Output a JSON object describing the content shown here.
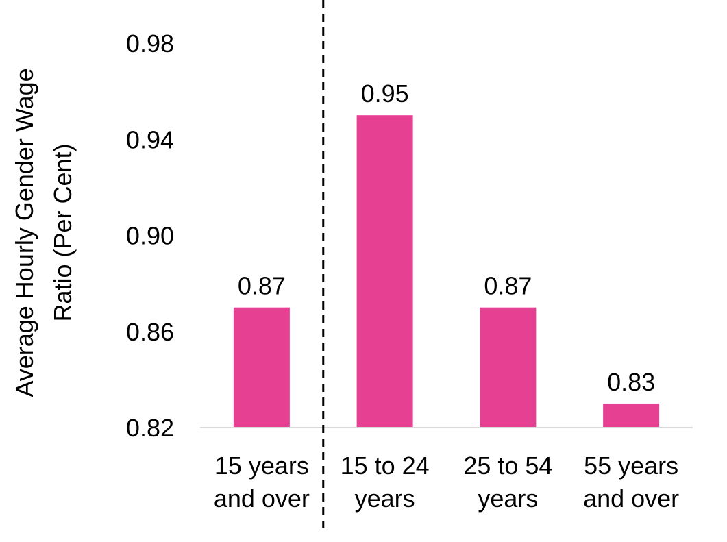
{
  "chart_data": {
    "type": "bar",
    "categories": [
      [
        "15 years",
        "and over"
      ],
      [
        "15 to 24",
        "years"
      ],
      [
        "25 to 54",
        "years"
      ],
      [
        "55 years",
        "and over"
      ]
    ],
    "values": [
      0.87,
      0.95,
      0.87,
      0.83
    ],
    "data_labels": [
      "0.87",
      "0.95",
      "0.87",
      "0.83"
    ],
    "title": "",
    "xlabel": "",
    "ylabel": [
      "Average Hourly Gender Wage",
      "Ratio (Per Cent)"
    ],
    "ylim": [
      0.82,
      0.98
    ],
    "yticks": [
      "0.82",
      "0.86",
      "0.90",
      "0.94",
      "0.98"
    ],
    "ytick_values": [
      0.82,
      0.86,
      0.9,
      0.94,
      0.98
    ],
    "bar_color": "#e64093",
    "axis_color": "#d9d9d9",
    "divider": "dashed line between first and second category",
    "grid": false,
    "legend": "none"
  }
}
